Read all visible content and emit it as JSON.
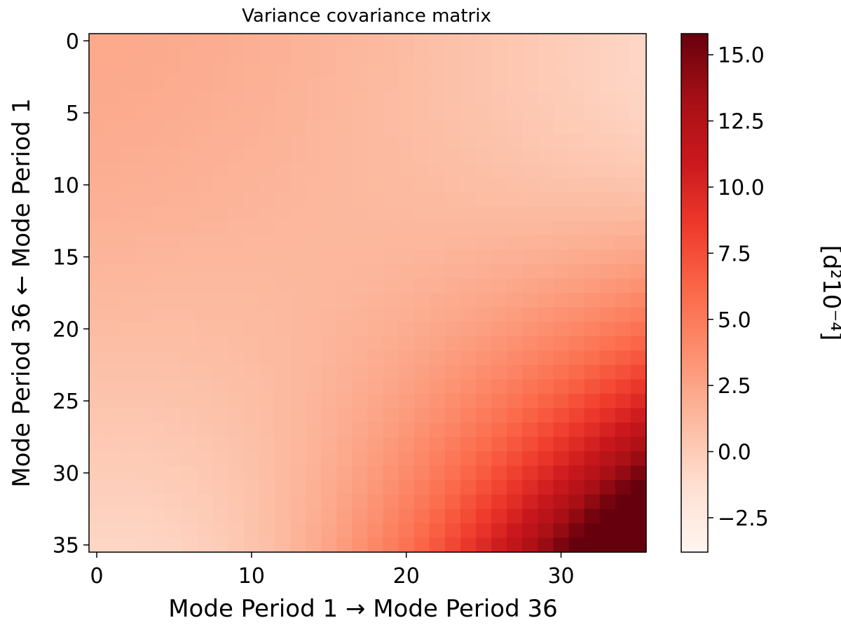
{
  "chart_data": {
    "type": "heatmap",
    "title": "Variance covariance matrix",
    "xlabel": "Mode Period 1 → Mode Period 36",
    "ylabel": "Mode Period 36 ← Mode Period 1",
    "colorbar_label": "[d²10⁻⁴]",
    "colormap": "Reds",
    "size": 36,
    "x_ticks": [
      0,
      10,
      20,
      30
    ],
    "y_ticks": [
      0,
      5,
      10,
      15,
      20,
      25,
      30,
      35
    ],
    "x_tick_labels": [
      "0",
      "10",
      "20",
      "30"
    ],
    "y_tick_labels": [
      "0",
      "5",
      "10",
      "15",
      "20",
      "25",
      "30",
      "35"
    ],
    "color_range": [
      -3.8,
      15.8
    ],
    "colorbar_ticks": [
      -2.5,
      0.0,
      2.5,
      5.0,
      7.5,
      10.0,
      12.5,
      15.0
    ],
    "colorbar_tick_labels": [
      "−2.5",
      "0.0",
      "2.5",
      "5.0",
      "7.5",
      "10.0",
      "12.5",
      "15.0"
    ],
    "corner_values": {
      "top_left": 2.2,
      "top_right": -3.6,
      "bottom_left": -3.6,
      "bottom_right": 15.8
    },
    "grid": false
  }
}
